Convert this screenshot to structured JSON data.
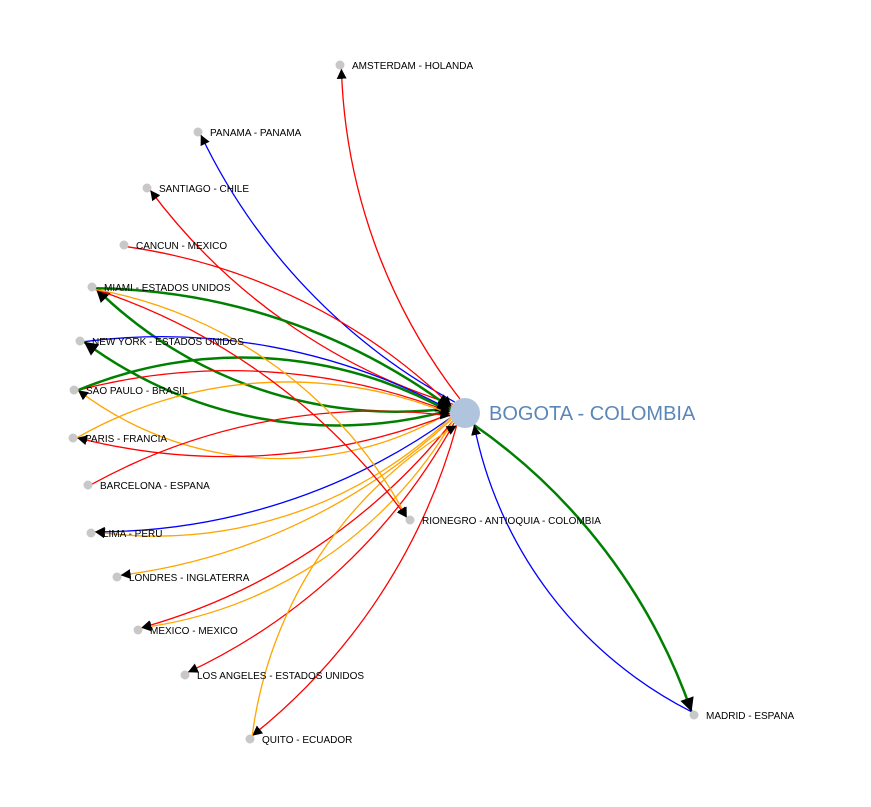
{
  "hub": {
    "label": "BOGOTA - COLOMBIA",
    "color": "#b0c4de",
    "label_color": "#5b87b8"
  },
  "node_color": "#c8c8c8",
  "link_colors": {
    "red": "#ff0000",
    "blue": "#0000ff",
    "green": "#008000",
    "orange": "#ffa500"
  },
  "nodes": [
    {
      "id": "amsterdam",
      "label": "AMSTERDAM - HOLANDA"
    },
    {
      "id": "panama",
      "label": "PANAMA - PANAMA"
    },
    {
      "id": "santiago",
      "label": "SANTIAGO - CHILE"
    },
    {
      "id": "cancun",
      "label": "CANCUN - MEXICO"
    },
    {
      "id": "miami",
      "label": "MIAMI - ESTADOS UNIDOS"
    },
    {
      "id": "newyork",
      "label": "NEW YORK - ESTADOS UNIDOS"
    },
    {
      "id": "saopaulo",
      "label": "SAO PAULO - BRASIL"
    },
    {
      "id": "paris",
      "label": "PARIS - FRANCIA"
    },
    {
      "id": "barcelona",
      "label": "BARCELONA - ESPANA"
    },
    {
      "id": "lima",
      "label": "LIMA - PERU"
    },
    {
      "id": "londres",
      "label": "LONDRES - INGLATERRA"
    },
    {
      "id": "mexico",
      "label": "MEXICO - MEXICO"
    },
    {
      "id": "losangeles",
      "label": "LOS ANGELES - ESTADOS UNIDOS"
    },
    {
      "id": "quito",
      "label": "QUITO - ECUADOR"
    },
    {
      "id": "rionegro",
      "label": "RIONEGRO - ANTIOQUIA - COLOMBIA"
    },
    {
      "id": "madrid",
      "label": "MADRID - ESPANA"
    }
  ],
  "links": [
    {
      "from": "hub",
      "to": "amsterdam",
      "color": "red"
    },
    {
      "from": "hub",
      "to": "panama",
      "color": "blue"
    },
    {
      "from": "hub",
      "to": "santiago",
      "color": "red"
    },
    {
      "from": "cancun",
      "to": "hub",
      "color": "red"
    },
    {
      "from": "miami",
      "to": "hub",
      "color": "green"
    },
    {
      "from": "hub",
      "to": "miami",
      "color": "green"
    },
    {
      "from": "newyork",
      "to": "hub",
      "color": "blue"
    },
    {
      "from": "hub",
      "to": "newyork",
      "color": "green"
    },
    {
      "from": "saopaulo",
      "to": "hub",
      "color": "red"
    },
    {
      "from": "saopaulo",
      "to": "hub",
      "color": "green"
    },
    {
      "from": "hub",
      "to": "saopaulo",
      "color": "orange"
    },
    {
      "from": "hub",
      "to": "paris",
      "color": "red"
    },
    {
      "from": "paris",
      "to": "hub",
      "color": "orange"
    },
    {
      "from": "barcelona",
      "to": "hub",
      "color": "red"
    },
    {
      "from": "hub",
      "to": "lima",
      "color": "blue"
    },
    {
      "from": "hub",
      "to": "lima",
      "color": "orange"
    },
    {
      "from": "hub",
      "to": "londres",
      "color": "orange"
    },
    {
      "from": "hub",
      "to": "mexico",
      "color": "red"
    },
    {
      "from": "hub",
      "to": "mexico",
      "color": "orange"
    },
    {
      "from": "hub",
      "to": "losangeles",
      "color": "red"
    },
    {
      "from": "hub",
      "to": "quito",
      "color": "red"
    },
    {
      "from": "quito",
      "to": "hub",
      "color": "orange"
    },
    {
      "from": "hub",
      "to": "madrid",
      "color": "green"
    },
    {
      "from": "madrid",
      "to": "hub",
      "color": "blue"
    },
    {
      "from": "miami",
      "to": "rionegro",
      "color": "red"
    },
    {
      "from": "miami",
      "to": "rionegro",
      "color": "orange"
    }
  ]
}
